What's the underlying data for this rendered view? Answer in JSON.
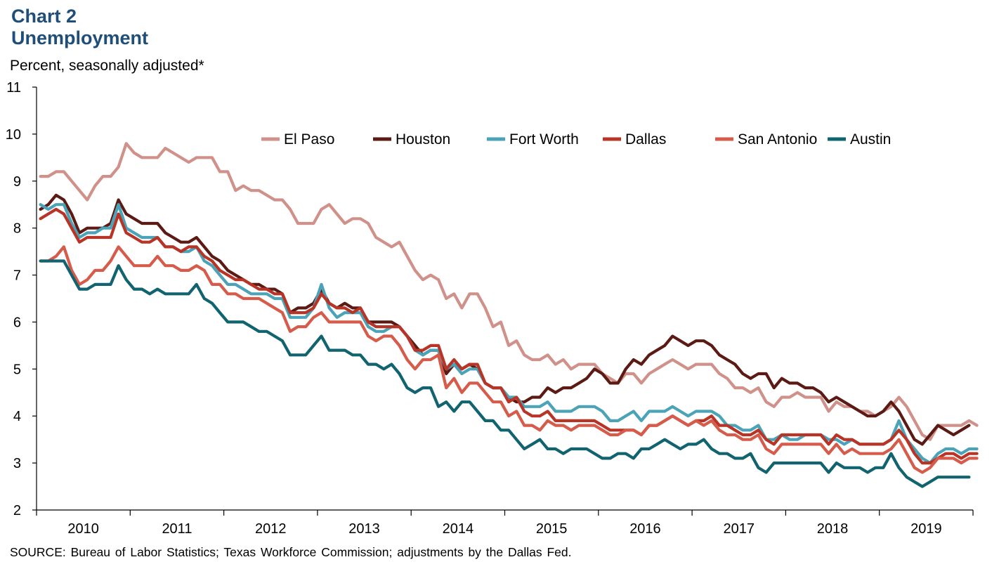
{
  "header": {
    "chart_label": "Chart 2",
    "title": "Unemployment",
    "ylabel": "Percent, seasonally adjusted*"
  },
  "source": "SOURCE: Bureau of Labor Statistics; Texas Workforce Commission; adjustments by the Dallas Fed.",
  "chart_data": {
    "type": "line",
    "title": "Unemployment",
    "ylabel": "Percent, seasonally adjusted*",
    "xlabel": "",
    "ylim": [
      2,
      11
    ],
    "yticks": [
      "2",
      "3",
      "4",
      "5",
      "6",
      "7",
      "8",
      "9",
      "10",
      "11"
    ],
    "x_start": "Jan 2010",
    "x_end": "Nov 2019",
    "x_frequency": "monthly",
    "years": [
      "2010",
      "2011",
      "2012",
      "2013",
      "2014",
      "2015",
      "2016",
      "2017",
      "2018",
      "2019"
    ],
    "grid": false,
    "legend_position": "top",
    "series": [
      {
        "name": "El Paso",
        "color": "#d0918a",
        "values": [
          9.1,
          9.1,
          9.2,
          9.2,
          9.0,
          8.8,
          8.6,
          8.9,
          9.1,
          9.1,
          9.3,
          9.8,
          9.6,
          9.5,
          9.5,
          9.5,
          9.7,
          9.6,
          9.5,
          9.4,
          9.5,
          9.5,
          9.5,
          9.2,
          9.2,
          8.8,
          8.9,
          8.8,
          8.8,
          8.7,
          8.6,
          8.6,
          8.4,
          8.1,
          8.1,
          8.1,
          8.4,
          8.5,
          8.3,
          8.1,
          8.2,
          8.2,
          8.1,
          7.8,
          7.7,
          7.6,
          7.7,
          7.4,
          7.1,
          6.9,
          7.0,
          6.9,
          6.5,
          6.6,
          6.3,
          6.6,
          6.6,
          6.3,
          5.9,
          6.0,
          5.5,
          5.6,
          5.3,
          5.2,
          5.2,
          5.3,
          5.1,
          5.2,
          5.0,
          5.1,
          5.1,
          5.1,
          4.9,
          4.8,
          4.7,
          4.9,
          4.9,
          4.7,
          4.9,
          5.0,
          5.1,
          5.2,
          5.1,
          5.0,
          5.1,
          5.1,
          5.1,
          4.9,
          4.8,
          4.6,
          4.6,
          4.5,
          4.6,
          4.3,
          4.2,
          4.4,
          4.4,
          4.5,
          4.4,
          4.4,
          4.4,
          4.1,
          4.3,
          4.2,
          4.2,
          4.1,
          4.1,
          4.0,
          4.1,
          4.2,
          4.4,
          4.2,
          3.9,
          3.6,
          3.5,
          3.8,
          3.8,
          3.8,
          3.8,
          3.9,
          3.8
        ]
      },
      {
        "name": "Houston",
        "color": "#5c1a14",
        "values": [
          8.4,
          8.5,
          8.7,
          8.6,
          8.3,
          7.9,
          8.0,
          8.0,
          8.0,
          8.1,
          8.6,
          8.3,
          8.2,
          8.1,
          8.1,
          8.1,
          7.9,
          7.8,
          7.7,
          7.7,
          7.8,
          7.6,
          7.4,
          7.3,
          7.1,
          7.0,
          6.9,
          6.8,
          6.8,
          6.7,
          6.7,
          6.6,
          6.2,
          6.3,
          6.3,
          6.4,
          6.7,
          6.4,
          6.3,
          6.4,
          6.3,
          6.3,
          6.0,
          6.0,
          6.0,
          6.0,
          5.9,
          5.7,
          5.5,
          5.3,
          5.4,
          5.4,
          4.9,
          5.1,
          5.0,
          5.1,
          5.0,
          4.7,
          4.6,
          4.6,
          4.4,
          4.3,
          4.3,
          4.4,
          4.4,
          4.6,
          4.5,
          4.6,
          4.6,
          4.7,
          4.8,
          5.0,
          4.9,
          4.7,
          4.7,
          5.0,
          5.2,
          5.1,
          5.3,
          5.4,
          5.5,
          5.7,
          5.6,
          5.5,
          5.6,
          5.6,
          5.5,
          5.3,
          5.2,
          5.1,
          4.9,
          4.8,
          4.9,
          4.9,
          4.6,
          4.8,
          4.7,
          4.7,
          4.6,
          4.6,
          4.5,
          4.3,
          4.4,
          4.3,
          4.2,
          4.1,
          4.0,
          4.0,
          4.1,
          4.3,
          4.1,
          3.8,
          3.5,
          3.4,
          3.6,
          3.8,
          3.7,
          3.6,
          3.7,
          3.8
        ]
      },
      {
        "name": "Fort Worth",
        "color": "#4ba3b7",
        "values": [
          8.5,
          8.4,
          8.5,
          8.5,
          8.1,
          7.8,
          7.9,
          7.9,
          8.0,
          8.0,
          8.5,
          8.0,
          7.9,
          7.8,
          7.8,
          7.8,
          7.6,
          7.6,
          7.5,
          7.5,
          7.6,
          7.3,
          7.2,
          7.0,
          6.8,
          6.8,
          6.7,
          6.6,
          6.6,
          6.6,
          6.5,
          6.5,
          6.1,
          6.1,
          6.1,
          6.3,
          6.8,
          6.3,
          6.1,
          6.2,
          6.2,
          6.2,
          5.9,
          5.8,
          5.8,
          5.9,
          5.9,
          5.7,
          5.4,
          5.3,
          5.4,
          5.4,
          5.0,
          5.1,
          4.9,
          5.0,
          5.0,
          4.7,
          4.6,
          4.6,
          4.4,
          4.4,
          4.2,
          4.2,
          4.2,
          4.3,
          4.1,
          4.1,
          4.1,
          4.2,
          4.2,
          4.2,
          4.1,
          3.9,
          3.9,
          4.0,
          4.1,
          3.9,
          4.1,
          4.1,
          4.1,
          4.2,
          4.1,
          4.0,
          4.1,
          4.1,
          4.1,
          4.0,
          3.8,
          3.8,
          3.7,
          3.7,
          3.8,
          3.5,
          3.5,
          3.6,
          3.5,
          3.5,
          3.6,
          3.6,
          3.6,
          3.5,
          3.5,
          3.4,
          3.5,
          3.4,
          3.4,
          3.4,
          3.4,
          3.5,
          3.9,
          3.5,
          3.3,
          3.1,
          3.0,
          3.2,
          3.3,
          3.3,
          3.2,
          3.3,
          3.3
        ]
      },
      {
        "name": "Dallas",
        "color": "#b83427",
        "values": [
          8.2,
          8.3,
          8.4,
          8.3,
          8.0,
          7.7,
          7.8,
          7.8,
          7.8,
          7.8,
          8.3,
          7.9,
          7.8,
          7.7,
          7.7,
          7.8,
          7.6,
          7.6,
          7.5,
          7.6,
          7.6,
          7.4,
          7.3,
          7.1,
          7.0,
          6.9,
          6.9,
          6.8,
          6.7,
          6.7,
          6.6,
          6.6,
          6.2,
          6.2,
          6.2,
          6.3,
          6.6,
          6.4,
          6.3,
          6.3,
          6.2,
          6.3,
          6.0,
          5.9,
          5.9,
          5.9,
          5.9,
          5.7,
          5.4,
          5.4,
          5.5,
          5.5,
          5.0,
          5.2,
          5.0,
          5.1,
          5.1,
          4.7,
          4.6,
          4.6,
          4.3,
          4.4,
          4.1,
          4.0,
          4.0,
          4.1,
          3.9,
          3.9,
          3.9,
          3.9,
          3.9,
          3.9,
          3.8,
          3.7,
          3.7,
          3.7,
          3.7,
          3.6,
          3.8,
          3.8,
          3.9,
          4.0,
          3.9,
          3.8,
          3.9,
          3.9,
          4.0,
          3.8,
          3.8,
          3.7,
          3.6,
          3.6,
          3.7,
          3.5,
          3.4,
          3.6,
          3.6,
          3.6,
          3.6,
          3.6,
          3.6,
          3.4,
          3.6,
          3.5,
          3.5,
          3.4,
          3.4,
          3.4,
          3.4,
          3.5,
          3.7,
          3.5,
          3.2,
          3.0,
          3.0,
          3.1,
          3.2,
          3.2,
          3.1,
          3.2,
          3.2
        ]
      },
      {
        "name": "San Antonio",
        "color": "#d65b4a",
        "values": [
          7.3,
          7.3,
          7.4,
          7.6,
          7.1,
          6.8,
          6.9,
          7.1,
          7.1,
          7.3,
          7.6,
          7.4,
          7.2,
          7.2,
          7.2,
          7.4,
          7.2,
          7.2,
          7.1,
          7.1,
          7.2,
          7.1,
          6.8,
          6.8,
          6.6,
          6.6,
          6.5,
          6.5,
          6.5,
          6.4,
          6.3,
          6.2,
          5.8,
          5.9,
          5.9,
          6.1,
          6.2,
          6.0,
          6.0,
          6.0,
          6.0,
          6.0,
          5.7,
          5.6,
          5.7,
          5.7,
          5.5,
          5.2,
          5.0,
          5.2,
          5.2,
          5.3,
          4.6,
          4.8,
          4.5,
          4.7,
          4.7,
          4.5,
          4.3,
          4.3,
          4.0,
          4.1,
          3.8,
          3.8,
          3.7,
          3.9,
          3.8,
          3.8,
          3.7,
          3.8,
          3.8,
          3.8,
          3.7,
          3.6,
          3.6,
          3.7,
          3.7,
          3.6,
          3.8,
          3.8,
          3.9,
          4.0,
          3.9,
          3.8,
          3.9,
          3.8,
          3.9,
          3.7,
          3.6,
          3.6,
          3.5,
          3.5,
          3.6,
          3.3,
          3.2,
          3.4,
          3.4,
          3.4,
          3.4,
          3.4,
          3.4,
          3.2,
          3.4,
          3.2,
          3.3,
          3.2,
          3.2,
          3.2,
          3.2,
          3.3,
          3.5,
          3.2,
          2.9,
          2.8,
          2.9,
          3.1,
          3.1,
          3.1,
          3.0,
          3.1,
          3.1
        ]
      },
      {
        "name": "Austin",
        "color": "#11646f",
        "values": [
          7.3,
          7.3,
          7.3,
          7.3,
          7.0,
          6.7,
          6.7,
          6.8,
          6.8,
          6.8,
          7.2,
          6.9,
          6.7,
          6.7,
          6.6,
          6.7,
          6.6,
          6.6,
          6.6,
          6.6,
          6.8,
          6.5,
          6.4,
          6.2,
          6.0,
          6.0,
          6.0,
          5.9,
          5.8,
          5.8,
          5.7,
          5.6,
          5.3,
          5.3,
          5.3,
          5.5,
          5.7,
          5.4,
          5.4,
          5.4,
          5.3,
          5.3,
          5.1,
          5.1,
          5.0,
          5.1,
          4.9,
          4.6,
          4.5,
          4.6,
          4.6,
          4.2,
          4.3,
          4.1,
          4.3,
          4.3,
          4.1,
          3.9,
          3.9,
          3.7,
          3.7,
          3.5,
          3.3,
          3.4,
          3.5,
          3.3,
          3.3,
          3.2,
          3.3,
          3.3,
          3.3,
          3.2,
          3.1,
          3.1,
          3.2,
          3.2,
          3.1,
          3.3,
          3.3,
          3.4,
          3.5,
          3.4,
          3.3,
          3.4,
          3.4,
          3.5,
          3.3,
          3.2,
          3.2,
          3.1,
          3.1,
          3.2,
          2.9,
          2.8,
          3.0,
          3.0,
          3.0,
          3.0,
          3.0,
          3.0,
          3.0,
          2.8,
          3.0,
          2.9,
          2.9,
          2.9,
          2.8,
          2.9,
          2.9,
          3.2,
          2.9,
          2.7,
          2.6,
          2.5,
          2.6,
          2.7,
          2.7,
          2.7,
          2.7,
          2.7
        ]
      }
    ]
  }
}
